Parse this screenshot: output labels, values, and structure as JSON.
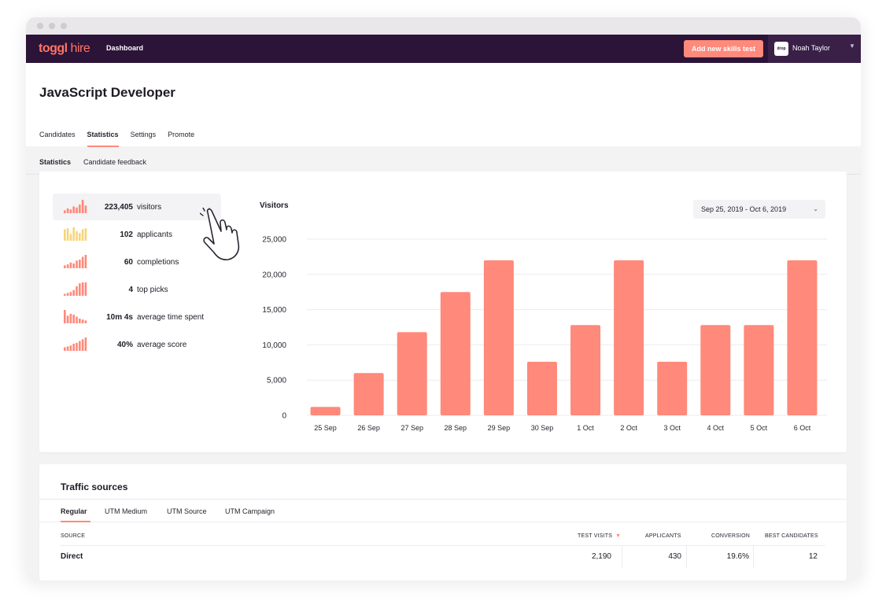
{
  "brand": {
    "logo_main": "toggl",
    "logo_sub": "hire",
    "accent": "#ff897a",
    "nav_bg": "#2c1338"
  },
  "nav": {
    "dashboard_label": "Dashboard",
    "cta_label": "Add new skills test",
    "user_name": "Noah Taylor",
    "user_avatar_text": "drop"
  },
  "page": {
    "title": "JavaScript Developer",
    "tabs": [
      "Candidates",
      "Statistics",
      "Settings",
      "Promote"
    ],
    "active_tab": "Statistics"
  },
  "subtabs": {
    "items": [
      "Statistics",
      "Candidate feedback"
    ],
    "active": "Statistics"
  },
  "metrics": [
    {
      "value": "223,405",
      "label": "visitors",
      "spark_color": "#ff897a",
      "spark": [
        3,
        5,
        4,
        7,
        6,
        9,
        14,
        8
      ]
    },
    {
      "value": "102",
      "label": "applicants",
      "spark_color": "#f7d57a",
      "spark": [
        12,
        13,
        7,
        14,
        10,
        8,
        12,
        13
      ]
    },
    {
      "value": "60",
      "label": "completions",
      "spark_color": "#ff897a",
      "spark": [
        3,
        4,
        6,
        5,
        8,
        9,
        12,
        14
      ]
    },
    {
      "value": "4",
      "label": "top picks",
      "spark_color": "#ff897a",
      "spark": [
        2,
        3,
        4,
        6,
        10,
        13,
        14,
        14
      ]
    },
    {
      "value": "10m 4s",
      "label": "average time spent",
      "spark_color": "#ff897a",
      "spark": [
        14,
        8,
        10,
        9,
        7,
        5,
        4,
        3
      ]
    },
    {
      "value": "40%",
      "label": "average score",
      "spark_color": "#ff897a",
      "spark": [
        4,
        5,
        6,
        8,
        9,
        11,
        13,
        15
      ]
    }
  ],
  "chart_data": {
    "type": "bar",
    "title": "Visitors",
    "categories": [
      "25 Sep",
      "26 Sep",
      "27 Sep",
      "28 Sep",
      "29 Sep",
      "30 Sep",
      "1 Oct",
      "2 Oct",
      "3 Oct",
      "4 Oct",
      "5 Oct",
      "6 Oct"
    ],
    "values": [
      1200,
      6000,
      11800,
      17500,
      22000,
      7600,
      12800,
      22000,
      7600,
      12800,
      12800,
      22000
    ],
    "ylim": [
      0,
      25000
    ],
    "yticks": [
      0,
      5000,
      10000,
      15000,
      20000,
      25000
    ],
    "ytick_labels": [
      "0",
      "5,000",
      "10,000",
      "15,000",
      "20,000",
      "25,000"
    ],
    "grid": true,
    "bar_color": "#ff897a"
  },
  "date_range": {
    "label": "Sep 25, 2019 - Oct 6, 2019"
  },
  "traffic": {
    "title": "Traffic sources",
    "tabs": [
      "Regular",
      "UTM Medium",
      "UTM Source",
      "UTM Campaign"
    ],
    "active_tab": "Regular",
    "columns": [
      "SOURCE",
      "TEST VISITS",
      "APPLICANTS",
      "CONVERSION",
      "BEST CANDIDATES"
    ],
    "rows": [
      {
        "source": "Direct",
        "test_visits": "2,190",
        "applicants": "430",
        "conversion": "19.6%",
        "best_candidates": "12"
      }
    ]
  }
}
